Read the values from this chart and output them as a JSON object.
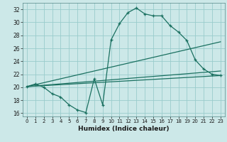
{
  "xlabel": "Humidex (Indice chaleur)",
  "bg_color": "#cce8e8",
  "grid_color": "#99cccc",
  "line_color": "#1a7060",
  "xlim": [
    -0.5,
    23.5
  ],
  "ylim": [
    15.5,
    33.0
  ],
  "xticks": [
    0,
    1,
    2,
    3,
    4,
    5,
    6,
    7,
    8,
    9,
    10,
    11,
    12,
    13,
    14,
    15,
    16,
    17,
    18,
    19,
    20,
    21,
    22,
    23
  ],
  "yticks": [
    16,
    18,
    20,
    22,
    24,
    26,
    28,
    30,
    32
  ],
  "series1_x": [
    0,
    1,
    2,
    3,
    4,
    5,
    6,
    7,
    8,
    9,
    10,
    11,
    12,
    13,
    14,
    15,
    16,
    17,
    18,
    19,
    20,
    21,
    22,
    23
  ],
  "series1_y": [
    20.1,
    20.5,
    20.0,
    19.0,
    18.5,
    17.3,
    16.5,
    16.1,
    21.3,
    17.3,
    27.3,
    29.8,
    31.5,
    32.2,
    31.3,
    31.0,
    31.0,
    29.5,
    28.5,
    27.2,
    24.2,
    22.8,
    22.0,
    21.8
  ],
  "trend1_x": [
    0,
    23
  ],
  "trend1_y": [
    20.1,
    21.8
  ],
  "trend2_x": [
    0,
    23
  ],
  "trend2_y": [
    20.1,
    27.0
  ],
  "trend3_x": [
    0,
    23
  ],
  "trend3_y": [
    20.1,
    22.5
  ]
}
